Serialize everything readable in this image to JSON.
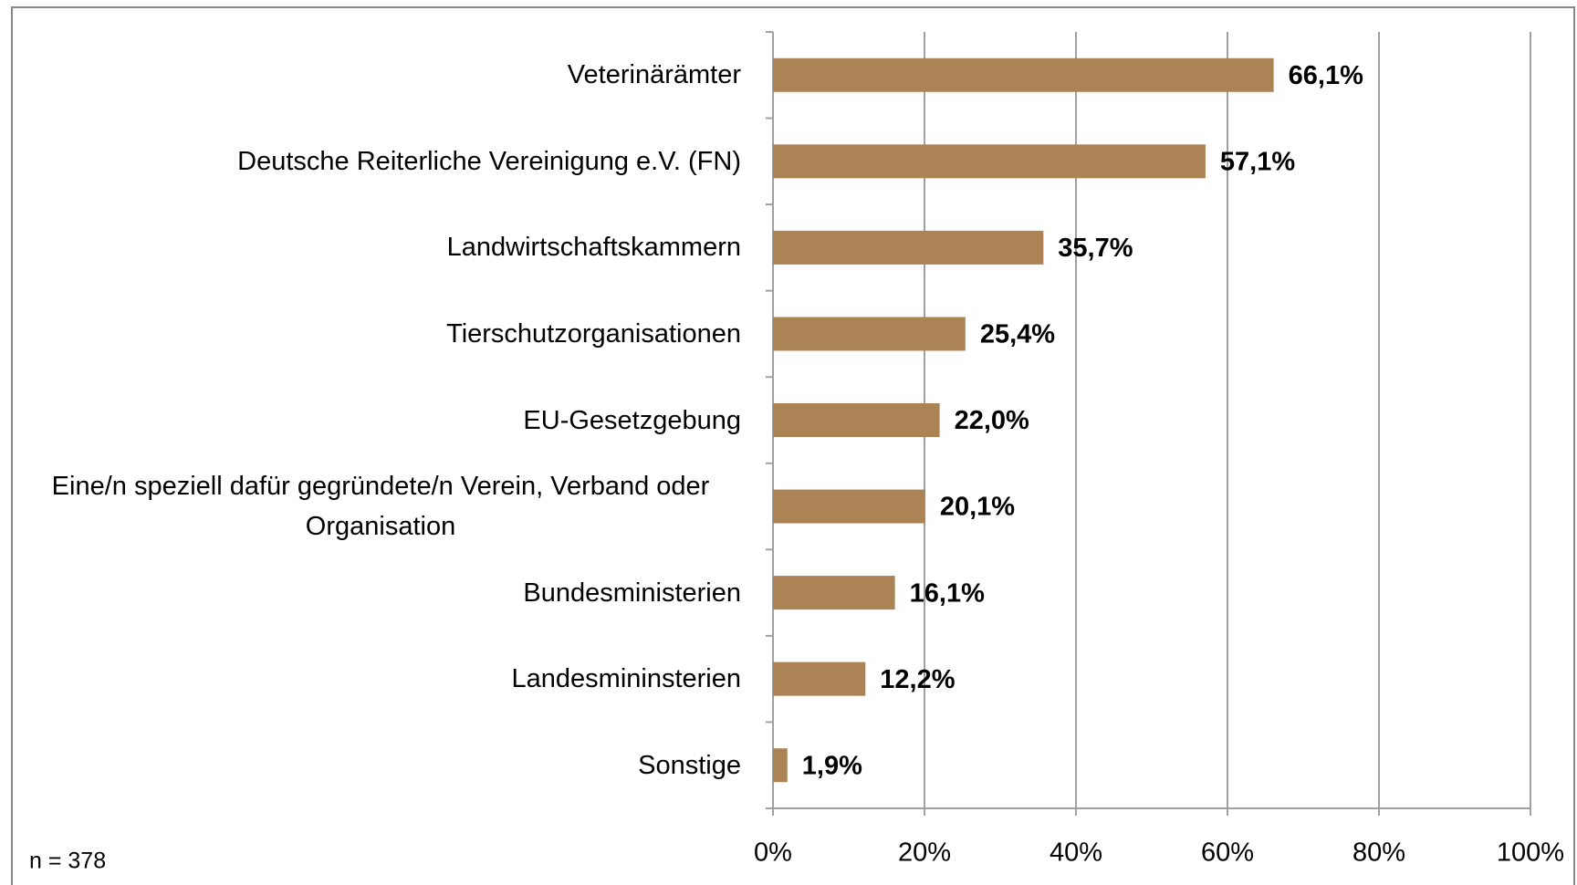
{
  "chart_data": {
    "type": "bar",
    "orientation": "horizontal",
    "categories": [
      "Veterinärämter",
      "Deutsche Reiterliche Vereinigung e.V. (FN)",
      "Landwirtschaftskammern",
      "Tierschutzorganisationen",
      "EU-Gesetzgebung",
      "Eine/n speziell dafür gegründete/n Verein, Verband oder Organisation",
      "Bundesministerien",
      "Landesmininsterien",
      "Sonstige"
    ],
    "values": [
      66.1,
      57.1,
      35.7,
      25.4,
      22.0,
      20.1,
      16.1,
      12.2,
      1.9
    ],
    "value_labels": [
      "66,1%",
      "57,1%",
      "35,7%",
      "25,4%",
      "22,0%",
      "20,1%",
      "16,1%",
      "12,2%",
      "1,9%"
    ],
    "color": "#ab8355",
    "xlim": [
      0,
      100
    ],
    "xticks": [
      {
        "value": 0,
        "label": "0%"
      },
      {
        "value": 20,
        "label": "20%"
      },
      {
        "value": 40,
        "label": "40%"
      },
      {
        "value": 60,
        "label": "60%"
      },
      {
        "value": 80,
        "label": "80%"
      },
      {
        "value": 100,
        "label": "100%"
      }
    ],
    "grid": true,
    "annotation": "n = 378"
  }
}
